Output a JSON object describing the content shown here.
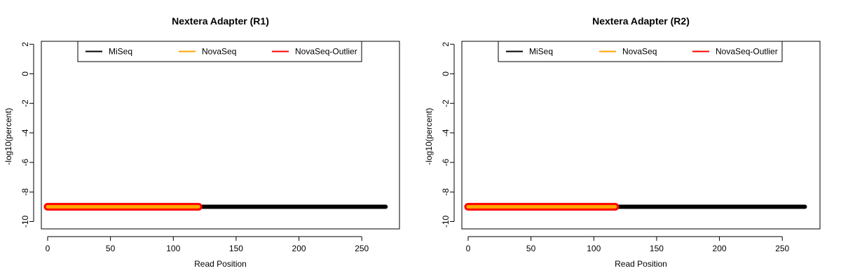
{
  "chart_data": [
    {
      "type": "line",
      "title": "Nextera Adapter (R1)",
      "xlabel": "Read Position",
      "ylabel": "-log10(percent)",
      "xlim": [
        -5,
        280
      ],
      "ylim": [
        -10.5,
        2.2
      ],
      "xticks": [
        0,
        50,
        100,
        150,
        200,
        250
      ],
      "yticks": [
        2,
        0,
        -2,
        -4,
        -6,
        -8,
        -10
      ],
      "grid": false,
      "legend_position": "top-center",
      "series": [
        {
          "name": "MiSeq",
          "color": "#000000",
          "x_range": [
            0,
            269
          ],
          "y": -9
        },
        {
          "name": "NovaSeq",
          "color": "#ffa500",
          "x_range": [
            0,
            120
          ],
          "y": -9
        },
        {
          "name": "NovaSeq-Outlier",
          "color": "#ff0000",
          "x_range": [
            0,
            120
          ],
          "y": -9
        }
      ]
    },
    {
      "type": "line",
      "title": "Nextera Adapter (R2)",
      "xlabel": "Read Position",
      "ylabel": "-log10(percent)",
      "xlim": [
        -5,
        280
      ],
      "ylim": [
        -10.5,
        2.2
      ],
      "xticks": [
        0,
        50,
        100,
        150,
        200,
        250
      ],
      "yticks": [
        2,
        0,
        -2,
        -4,
        -6,
        -8,
        -10
      ],
      "grid": false,
      "legend_position": "top-center",
      "series": [
        {
          "name": "MiSeq",
          "color": "#000000",
          "x_range": [
            0,
            268
          ],
          "y": -9
        },
        {
          "name": "NovaSeq",
          "color": "#ffa500",
          "x_range": [
            0,
            117
          ],
          "y": -9
        },
        {
          "name": "NovaSeq-Outlier",
          "color": "#ff0000",
          "x_range": [
            0,
            117
          ],
          "y": -9
        }
      ]
    }
  ]
}
